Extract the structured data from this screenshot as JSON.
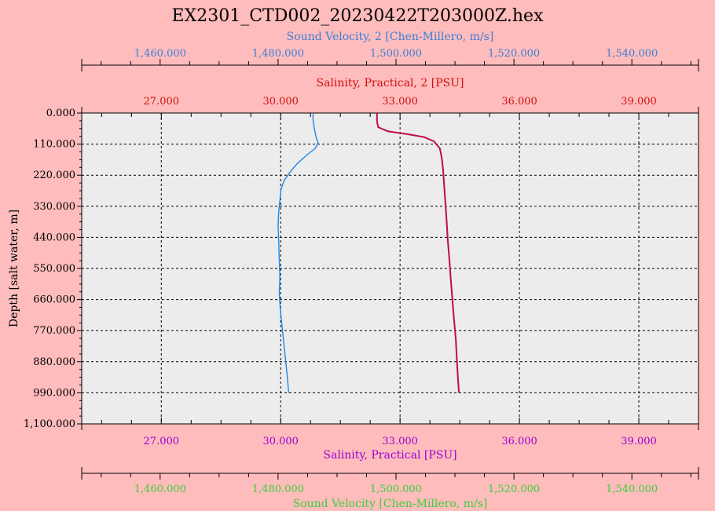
{
  "chart_data": {
    "type": "line",
    "title": "EX2301_CTD002_20230422T203000Z.hex",
    "y_axis": {
      "label": "Depth [salt water, m]",
      "range": [
        0,
        1100
      ],
      "ticks": [
        0,
        110,
        220,
        330,
        440,
        550,
        660,
        770,
        880,
        990,
        1100
      ],
      "tick_labels": [
        "0.000",
        "110.000",
        "220.000",
        "330.000",
        "440.000",
        "550.000",
        "660.000",
        "770.000",
        "880.000",
        "990.000",
        "1,100.000"
      ],
      "inverted": true
    },
    "axes": {
      "top_outer": {
        "label": "Sound Velocity, 2 [Chen-Millero, m/s]",
        "color": "#3c7fd6",
        "range": [
          1446.7,
          1551.3
        ],
        "ticks": [
          1460,
          1480,
          1500,
          1520,
          1540
        ],
        "tick_labels": [
          "1,460.000",
          "1,480.000",
          "1,500.000",
          "1,520.000",
          "1,540.000"
        ]
      },
      "top_inner": {
        "label": "Salinity, Practical, 2 [PSU]",
        "color": "#d01010",
        "range": [
          25.0,
          40.5
        ],
        "ticks": [
          27,
          30,
          33,
          36,
          39
        ],
        "tick_labels": [
          "27.000",
          "30.000",
          "33.000",
          "36.000",
          "39.000"
        ]
      },
      "bottom_inner": {
        "label": "Salinity, Practical [PSU]",
        "color": "#9a00d4",
        "range": [
          25.0,
          40.5
        ],
        "ticks": [
          27,
          30,
          33,
          36,
          39
        ],
        "tick_labels": [
          "27.000",
          "30.000",
          "33.000",
          "36.000",
          "39.000"
        ]
      },
      "bottom_outer": {
        "label": "Sound Velocity [Chen-Millero, m/s]",
        "color": "#3ccf3c",
        "range": [
          1446.7,
          1551.3
        ],
        "ticks": [
          1460,
          1480,
          1500,
          1520,
          1540
        ],
        "tick_labels": [
          "1,460.000",
          "1,480.000",
          "1,500.000",
          "1,520.000",
          "1,540.000"
        ]
      }
    },
    "grid": true,
    "series": [
      {
        "name": "Sound Velocity, 2 [Chen-Millero, m/s]",
        "axis": "top_outer",
        "color": "#1e88e5",
        "points": [
          [
            1486.0,
            0
          ],
          [
            1485.9,
            15
          ],
          [
            1486.0,
            35
          ],
          [
            1486.2,
            60
          ],
          [
            1486.5,
            90
          ],
          [
            1486.8,
            105
          ],
          [
            1486.3,
            125
          ],
          [
            1484.8,
            150
          ],
          [
            1483.2,
            180
          ],
          [
            1482.0,
            210
          ],
          [
            1481.0,
            240
          ],
          [
            1480.5,
            270
          ],
          [
            1480.3,
            310
          ],
          [
            1480.1,
            350
          ],
          [
            1480.0,
            400
          ],
          [
            1480.1,
            450
          ],
          [
            1480.2,
            520
          ],
          [
            1480.3,
            580
          ],
          [
            1480.2,
            640
          ],
          [
            1480.4,
            700
          ],
          [
            1480.7,
            760
          ],
          [
            1481.0,
            820
          ],
          [
            1481.3,
            880
          ],
          [
            1481.6,
            940
          ],
          [
            1481.8,
            990
          ]
        ]
      },
      {
        "name": "Salinity, Practical [PSU]",
        "axis": "bottom_inner",
        "color": "#9a00d4",
        "points": [
          [
            32.42,
            0
          ],
          [
            32.42,
            30
          ],
          [
            32.45,
            50
          ],
          [
            32.7,
            65
          ],
          [
            33.2,
            75
          ],
          [
            33.6,
            85
          ],
          [
            33.85,
            100
          ],
          [
            34.0,
            125
          ],
          [
            34.05,
            160
          ],
          [
            34.08,
            200
          ],
          [
            34.1,
            240
          ],
          [
            34.13,
            300
          ],
          [
            34.17,
            380
          ],
          [
            34.2,
            450
          ],
          [
            34.24,
            520
          ],
          [
            34.27,
            580
          ],
          [
            34.31,
            650
          ],
          [
            34.35,
            720
          ],
          [
            34.4,
            800
          ],
          [
            34.43,
            880
          ],
          [
            34.46,
            950
          ],
          [
            34.48,
            990
          ]
        ]
      },
      {
        "name": "Salinity, Practical, 2 [PSU]",
        "axis": "top_inner",
        "color": "#d01010",
        "points": [
          [
            32.42,
            0
          ],
          [
            32.42,
            30
          ],
          [
            32.45,
            50
          ],
          [
            32.7,
            65
          ],
          [
            33.2,
            75
          ],
          [
            33.6,
            85
          ],
          [
            33.85,
            100
          ],
          [
            34.0,
            125
          ],
          [
            34.05,
            160
          ],
          [
            34.08,
            200
          ],
          [
            34.1,
            240
          ],
          [
            34.13,
            300
          ],
          [
            34.17,
            380
          ],
          [
            34.2,
            450
          ],
          [
            34.24,
            520
          ],
          [
            34.27,
            580
          ],
          [
            34.31,
            650
          ],
          [
            34.35,
            720
          ],
          [
            34.4,
            800
          ],
          [
            34.43,
            880
          ],
          [
            34.46,
            950
          ],
          [
            34.48,
            990
          ]
        ]
      }
    ]
  }
}
